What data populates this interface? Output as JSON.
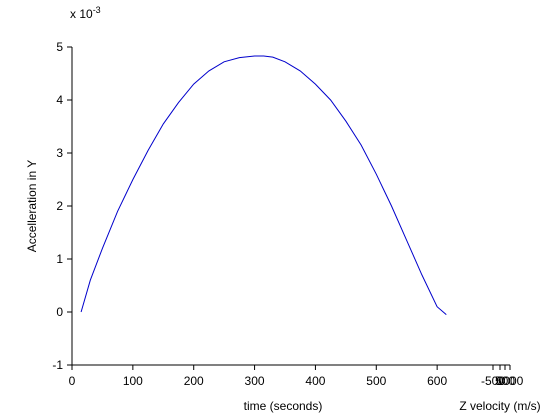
{
  "chart_data": {
    "type": "line",
    "title": "",
    "xlabel": "time (seconds)",
    "ylabel": "Accelleration in Y",
    "y_exponent_label": {
      "base": "x 10",
      "exponent": "-3"
    },
    "xlim": [
      0,
      700
    ],
    "ylim": [
      -1,
      5
    ],
    "x_ticks": [
      "0",
      "100",
      "200",
      "300",
      "400",
      "500",
      "600"
    ],
    "y_ticks": [
      "-1",
      "0",
      "1",
      "2",
      "3",
      "4",
      "5"
    ],
    "grid": false,
    "line_color": "#0000cc",
    "series": [
      {
        "x": [
          15,
          30,
          50,
          75,
          100,
          125,
          150,
          175,
          200,
          225,
          250,
          275,
          300,
          315,
          330,
          350,
          375,
          400,
          425,
          450,
          475,
          500,
          525,
          550,
          575,
          600,
          615
        ],
        "y": [
          0.0,
          0.6,
          1.2,
          1.9,
          2.5,
          3.05,
          3.55,
          3.95,
          4.3,
          4.55,
          4.72,
          4.8,
          4.83,
          4.83,
          4.81,
          4.72,
          4.55,
          4.3,
          4.0,
          3.6,
          3.15,
          2.6,
          2.0,
          1.35,
          0.7,
          0.1,
          -0.05
        ]
      }
    ],
    "secondary_x_axis": {
      "label": "Z velocity (m/s)",
      "tick_labels": [
        "-500",
        "0",
        "500",
        "1000"
      ]
    }
  }
}
